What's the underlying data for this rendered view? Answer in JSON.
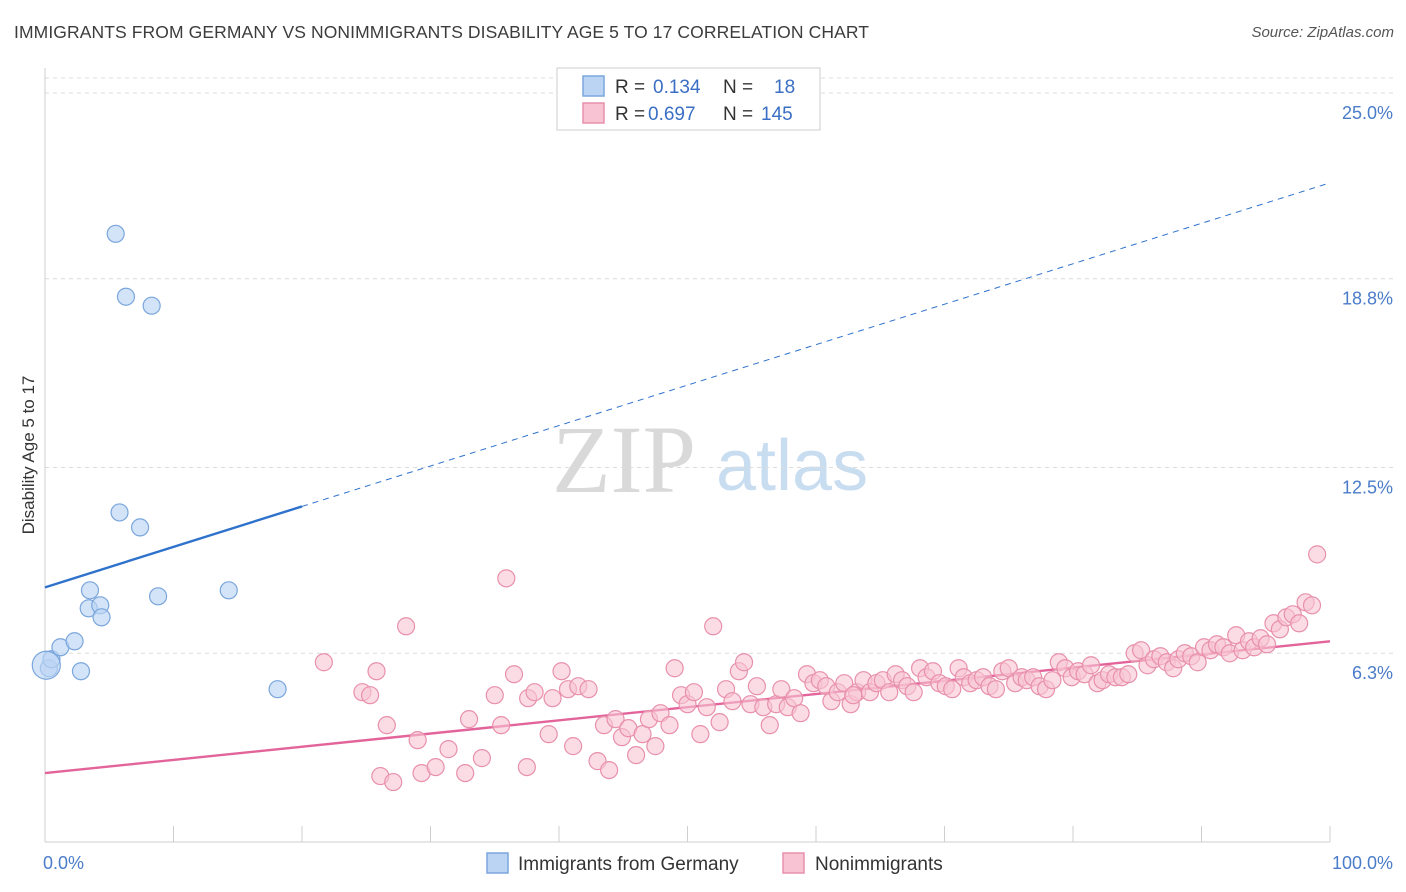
{
  "title": "IMMIGRANTS FROM GERMANY VS NONIMMIGRANTS DISABILITY AGE 5 TO 17 CORRELATION CHART",
  "source": "Source: ZipAtlas.com",
  "watermark": {
    "zip": "ZIP",
    "atlas": "atlas"
  },
  "legend": {
    "rows": [
      {
        "r_label": "R =",
        "r_value": "0.134",
        "n_label": "N =",
        "n_value": "18"
      },
      {
        "r_label": "R =",
        "r_value": "0.697",
        "n_label": "N =",
        "n_value": "145"
      }
    ]
  },
  "bottom_legend": {
    "items": [
      {
        "label": "Immigrants from Germany"
      },
      {
        "label": "Nonimmigrants"
      }
    ]
  },
  "colors": {
    "blue_fill": "#bcd4f4",
    "blue_stroke": "#7aa6dc",
    "blue_line": "#2f72cc",
    "pink_fill": "#f8c4d4",
    "pink_stroke": "#e890ac",
    "pink_line": "#e2649a",
    "grid": "#dcdcdc",
    "tick_text": "#4a7cc9"
  },
  "chart_data": {
    "type": "scatter",
    "title": "IMMIGRANTS FROM GERMANY VS NONIMMIGRANTS DISABILITY AGE 5 TO 17 CORRELATION CHART",
    "xlabel": "",
    "ylabel": "Disability Age 5 to 17",
    "xlim": [
      0,
      100
    ],
    "ylim": [
      0,
      25.5
    ],
    "x_tick_labels": [
      "0.0%",
      "100.0%"
    ],
    "y_ticks": [
      6.3,
      12.5,
      18.8,
      25.0
    ],
    "y_tick_labels": [
      "6.3%",
      "12.5%",
      "18.8%",
      "25.0%"
    ],
    "grid": "horizontal dashed",
    "legend_position": "top-center",
    "series": [
      {
        "name": "Immigrants from Germany",
        "r": 0.134,
        "n": 18,
        "points": [
          [
            0.3,
            5.8
          ],
          [
            0.5,
            6.1
          ],
          [
            1.2,
            6.5
          ],
          [
            2.3,
            6.7
          ],
          [
            2.8,
            5.7
          ],
          [
            3.5,
            8.4
          ],
          [
            3.4,
            7.8
          ],
          [
            4.3,
            7.9
          ],
          [
            4.4,
            7.5
          ],
          [
            5.5,
            20.3
          ],
          [
            5.8,
            11.0
          ],
          [
            6.3,
            18.2
          ],
          [
            7.4,
            10.5
          ],
          [
            8.3,
            17.9
          ],
          [
            8.8,
            8.2
          ],
          [
            14.3,
            8.4
          ],
          [
            18.1,
            5.1
          ],
          [
            0.1,
            5.9
          ]
        ],
        "trend": {
          "x": [
            0,
            20
          ],
          "y": [
            8.5,
            11.2
          ]
        },
        "trend_extension": {
          "x": [
            20,
            100
          ],
          "y": [
            11.2,
            22.0
          ]
        }
      },
      {
        "name": "Nonimmigrants",
        "r": 0.697,
        "n": 145,
        "points": [
          [
            21.7,
            6.0
          ],
          [
            24.7,
            5.0
          ],
          [
            25.3,
            4.9
          ],
          [
            25.8,
            5.7
          ],
          [
            26.1,
            2.2
          ],
          [
            26.6,
            3.9
          ],
          [
            27.1,
            2.0
          ],
          [
            28.1,
            7.2
          ],
          [
            29.0,
            3.4
          ],
          [
            29.3,
            2.3
          ],
          [
            30.4,
            2.5
          ],
          [
            31.4,
            3.1
          ],
          [
            32.7,
            2.3
          ],
          [
            33.0,
            4.1
          ],
          [
            34.0,
            2.8
          ],
          [
            35.0,
            4.9
          ],
          [
            35.5,
            3.9
          ],
          [
            35.9,
            8.8
          ],
          [
            36.5,
            5.6
          ],
          [
            37.5,
            2.5
          ],
          [
            37.6,
            4.8
          ],
          [
            38.1,
            5.0
          ],
          [
            39.2,
            3.6
          ],
          [
            39.5,
            4.8
          ],
          [
            40.2,
            5.7
          ],
          [
            40.7,
            5.1
          ],
          [
            41.1,
            3.2
          ],
          [
            41.5,
            5.2
          ],
          [
            42.3,
            5.1
          ],
          [
            43.0,
            2.7
          ],
          [
            43.5,
            3.9
          ],
          [
            43.9,
            2.4
          ],
          [
            44.4,
            4.1
          ],
          [
            44.9,
            3.5
          ],
          [
            45.4,
            3.8
          ],
          [
            46.0,
            2.9
          ],
          [
            46.5,
            3.6
          ],
          [
            47.0,
            4.1
          ],
          [
            47.5,
            3.2
          ],
          [
            47.9,
            4.3
          ],
          [
            48.6,
            3.9
          ],
          [
            49.0,
            5.8
          ],
          [
            49.5,
            4.9
          ],
          [
            50.0,
            4.6
          ],
          [
            50.5,
            5.0
          ],
          [
            51.0,
            3.6
          ],
          [
            51.5,
            4.5
          ],
          [
            52.0,
            7.2
          ],
          [
            52.5,
            4.0
          ],
          [
            53.0,
            5.1
          ],
          [
            53.5,
            4.7
          ],
          [
            54.0,
            5.7
          ],
          [
            54.4,
            6.0
          ],
          [
            54.9,
            4.6
          ],
          [
            55.4,
            5.2
          ],
          [
            55.9,
            4.5
          ],
          [
            56.4,
            3.9
          ],
          [
            56.9,
            4.6
          ],
          [
            57.3,
            5.1
          ],
          [
            57.8,
            4.5
          ],
          [
            58.3,
            4.8
          ],
          [
            58.8,
            4.3
          ],
          [
            59.3,
            5.6
          ],
          [
            59.8,
            5.3
          ],
          [
            60.3,
            5.4
          ],
          [
            60.8,
            5.2
          ],
          [
            61.2,
            4.7
          ],
          [
            61.7,
            5.0
          ],
          [
            62.2,
            5.3
          ],
          [
            62.7,
            4.6
          ],
          [
            63.2,
            5.0
          ],
          [
            63.7,
            5.4
          ],
          [
            64.2,
            5.0
          ],
          [
            64.7,
            5.3
          ],
          [
            65.2,
            5.4
          ],
          [
            65.7,
            5.0
          ],
          [
            66.2,
            5.6
          ],
          [
            66.7,
            5.4
          ],
          [
            67.1,
            5.2
          ],
          [
            67.6,
            5.0
          ],
          [
            68.1,
            5.8
          ],
          [
            68.6,
            5.5
          ],
          [
            69.1,
            5.7
          ],
          [
            69.6,
            5.3
          ],
          [
            70.1,
            5.2
          ],
          [
            70.6,
            5.1
          ],
          [
            71.1,
            5.8
          ],
          [
            71.5,
            5.5
          ],
          [
            72.0,
            5.3
          ],
          [
            72.5,
            5.4
          ],
          [
            73.0,
            5.5
          ],
          [
            73.5,
            5.2
          ],
          [
            74.0,
            5.1
          ],
          [
            74.5,
            5.7
          ],
          [
            75.0,
            5.8
          ],
          [
            75.5,
            5.3
          ],
          [
            76.0,
            5.5
          ],
          [
            76.4,
            5.4
          ],
          [
            76.9,
            5.5
          ],
          [
            77.4,
            5.2
          ],
          [
            77.9,
            5.1
          ],
          [
            78.4,
            5.4
          ],
          [
            78.9,
            6.0
          ],
          [
            79.4,
            5.8
          ],
          [
            79.9,
            5.5
          ],
          [
            80.4,
            5.7
          ],
          [
            80.9,
            5.6
          ],
          [
            81.4,
            5.9
          ],
          [
            81.9,
            5.3
          ],
          [
            82.3,
            5.4
          ],
          [
            82.8,
            5.6
          ],
          [
            83.3,
            5.5
          ],
          [
            83.8,
            5.5
          ],
          [
            84.3,
            5.6
          ],
          [
            84.8,
            6.3
          ],
          [
            85.3,
            6.4
          ],
          [
            85.8,
            5.9
          ],
          [
            86.3,
            6.1
          ],
          [
            86.8,
            6.2
          ],
          [
            87.3,
            6.0
          ],
          [
            87.8,
            5.8
          ],
          [
            88.2,
            6.1
          ],
          [
            88.7,
            6.3
          ],
          [
            89.2,
            6.2
          ],
          [
            89.7,
            6.0
          ],
          [
            90.2,
            6.5
          ],
          [
            90.7,
            6.4
          ],
          [
            91.2,
            6.6
          ],
          [
            91.7,
            6.5
          ],
          [
            92.2,
            6.3
          ],
          [
            92.7,
            6.9
          ],
          [
            93.2,
            6.4
          ],
          [
            93.7,
            6.7
          ],
          [
            94.1,
            6.5
          ],
          [
            94.6,
            6.8
          ],
          [
            95.1,
            6.6
          ],
          [
            95.6,
            7.3
          ],
          [
            96.1,
            7.1
          ],
          [
            96.6,
            7.5
          ],
          [
            97.1,
            7.6
          ],
          [
            97.6,
            7.3
          ],
          [
            98.1,
            8.0
          ],
          [
            98.6,
            7.9
          ],
          [
            99.0,
            9.6
          ],
          [
            62.9,
            4.9
          ]
        ],
        "trend": {
          "x": [
            0,
            100
          ],
          "y": [
            2.3,
            6.7
          ]
        }
      }
    ]
  }
}
